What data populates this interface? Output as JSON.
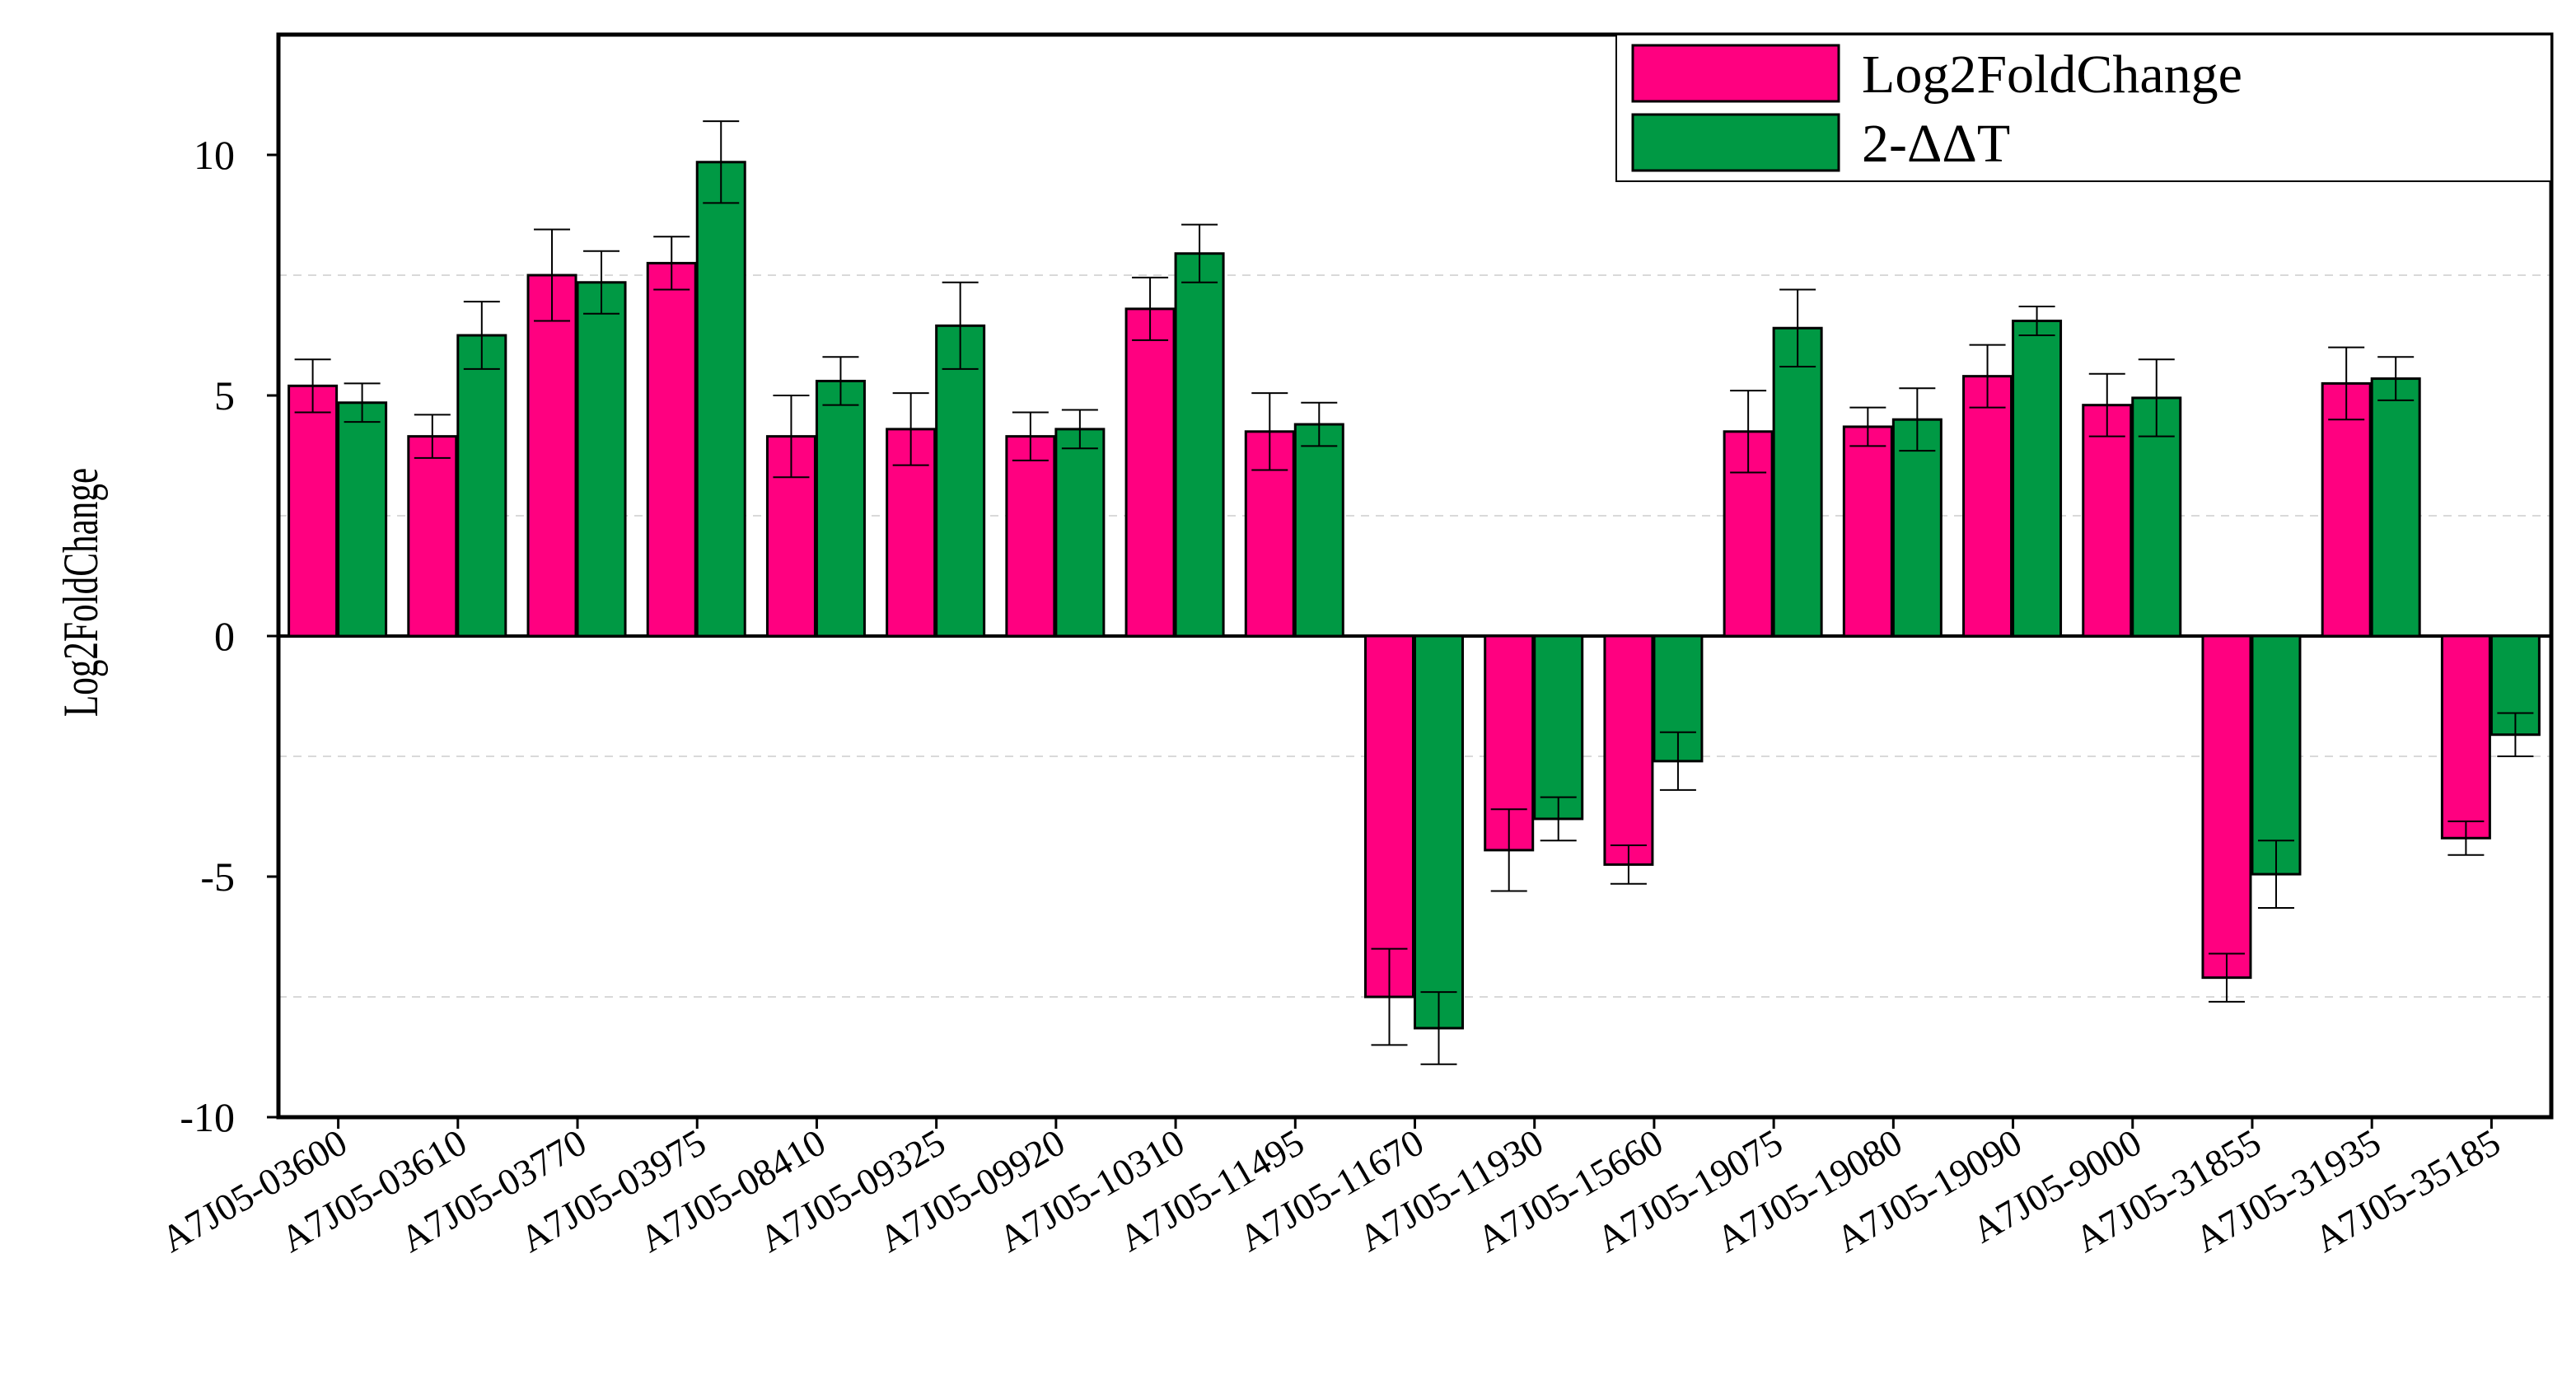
{
  "chart_data": {
    "type": "bar",
    "title": "",
    "xlabel": "",
    "ylabel": "Log2FoldChange",
    "ylim": [
      -10,
      12.5
    ],
    "yticks": [
      -10,
      -5,
      0,
      5,
      10
    ],
    "grid": "horizontal dashed, light gray",
    "legend_position": "top-right",
    "categories": [
      "A7J05-03600",
      "A7J05-03610",
      "A7J05-03770",
      "A7J05-03975",
      "A7J05-08410",
      "A7J05-09325",
      "A7J05-09920",
      "A7J05-10310",
      "A7J05-11495",
      "A7J05-11670",
      "A7J05-11930",
      "A7J05-15660",
      "A7J05-19075",
      "A7J05-19080",
      "A7J05-19090",
      "A7J05-9000",
      "A7J05-31855",
      "A7J05-31935",
      "A7J05-35185"
    ],
    "series": [
      {
        "name": "Log2FoldChange",
        "color": "#ff0080",
        "values": [
          5.2,
          4.15,
          7.5,
          7.75,
          4.15,
          4.3,
          4.15,
          6.8,
          4.25,
          -7.5,
          -4.45,
          -4.75,
          4.25,
          4.35,
          5.4,
          4.8,
          -7.1,
          5.25,
          -4.2
        ],
        "errors": [
          0.55,
          0.45,
          0.95,
          0.55,
          0.85,
          0.75,
          0.5,
          0.65,
          0.8,
          1.0,
          0.85,
          0.4,
          0.85,
          0.4,
          0.65,
          0.65,
          0.5,
          0.75,
          0.35
        ]
      },
      {
        "name": "2-ΔΔT",
        "color": "#009944",
        "values": [
          4.85,
          6.25,
          7.35,
          9.85,
          5.3,
          6.45,
          4.3,
          7.95,
          4.4,
          -8.15,
          -3.8,
          -2.6,
          6.4,
          4.5,
          6.55,
          4.95,
          -4.95,
          5.35,
          -2.05
        ],
        "errors": [
          0.4,
          0.7,
          0.65,
          0.85,
          0.5,
          0.9,
          0.4,
          0.6,
          0.45,
          0.75,
          0.45,
          0.6,
          0.8,
          0.65,
          0.3,
          0.8,
          0.7,
          0.45,
          0.45
        ]
      }
    ]
  }
}
